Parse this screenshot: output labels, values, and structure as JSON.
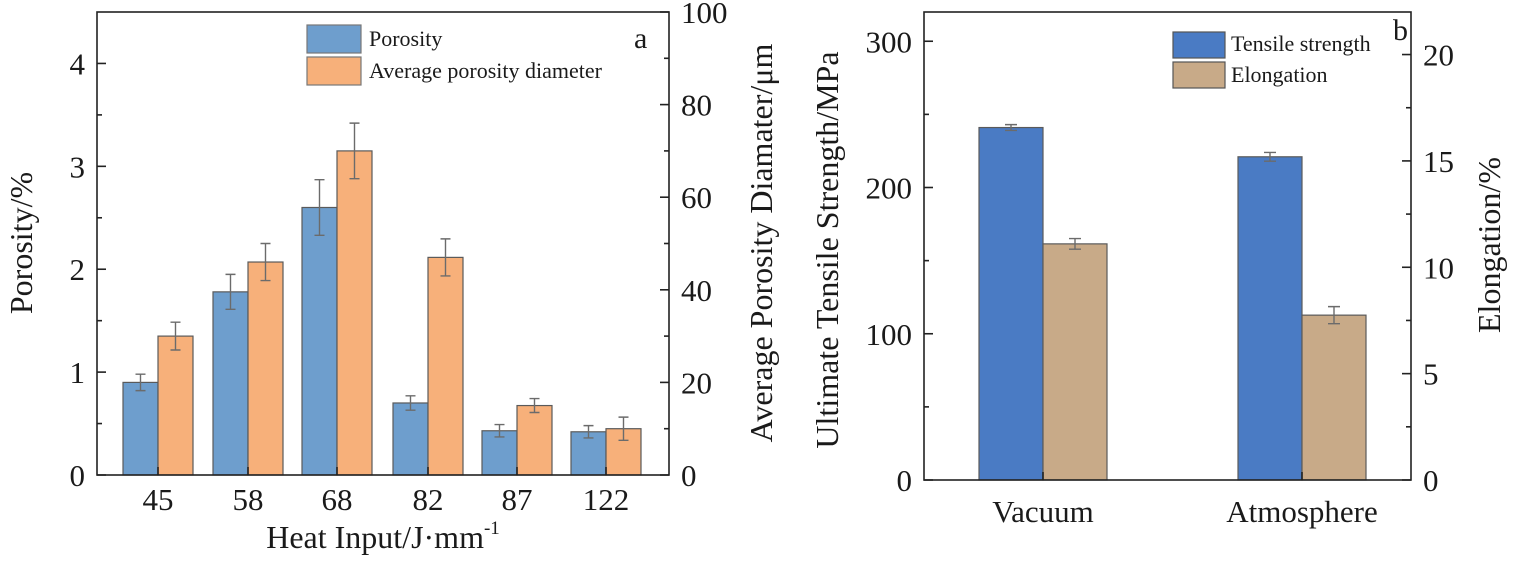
{
  "chart_data": [
    {
      "panel": "a",
      "type": "bar",
      "xlabel": "Heat Input/J·mm",
      "xlabel_sup": "-1",
      "ylabel_left": "Porosity/%",
      "ylabel_right": "Average Porosity Diamater/μm",
      "categories": [
        "45",
        "58",
        "68",
        "82",
        "87",
        "122"
      ],
      "ylim_left": [
        0,
        4.5
      ],
      "yticks_left": [
        "0",
        "1",
        "2",
        "3",
        "4"
      ],
      "ylim_right": [
        0,
        100
      ],
      "yticks_right": [
        "0",
        "20",
        "40",
        "60",
        "80",
        "100"
      ],
      "series": [
        {
          "name": "Porosity",
          "axis": "left",
          "color": "#6e9ecd",
          "values": [
            0.9,
            1.78,
            2.6,
            0.7,
            0.43,
            0.42
          ],
          "errors": [
            0.08,
            0.17,
            0.27,
            0.07,
            0.06,
            0.06
          ]
        },
        {
          "name": "Average porosity diameter",
          "axis": "right",
          "color": "#f7b07a",
          "values": [
            30,
            46,
            70,
            47,
            15,
            10
          ],
          "errors": [
            3,
            4,
            6,
            4,
            1.5,
            2.5
          ]
        }
      ],
      "legend_position": "top-right",
      "grid": false
    },
    {
      "panel": "b",
      "type": "bar",
      "xlabel": "",
      "ylabel_left": "Ultimate Tensile Strength/MPa",
      "ylabel_right": "Elongation/%",
      "categories": [
        "Vacuum",
        "Atmosphere"
      ],
      "ylim_left": [
        0,
        320
      ],
      "yticks_left": [
        "0",
        "100",
        "200",
        "300"
      ],
      "ylim_right": [
        0,
        22
      ],
      "yticks_right": [
        "0",
        "5",
        "10",
        "15",
        "20"
      ],
      "series": [
        {
          "name": "Tensile strength",
          "axis": "left",
          "color": "#4a7bc4",
          "values": [
            241,
            221
          ],
          "errors": [
            2,
            3
          ]
        },
        {
          "name": "Elongation",
          "axis": "right",
          "color": "#c8aa88",
          "values": [
            11.1,
            7.75
          ],
          "errors": [
            0.25,
            0.4
          ]
        }
      ],
      "legend_position": "top-right",
      "grid": false
    }
  ]
}
